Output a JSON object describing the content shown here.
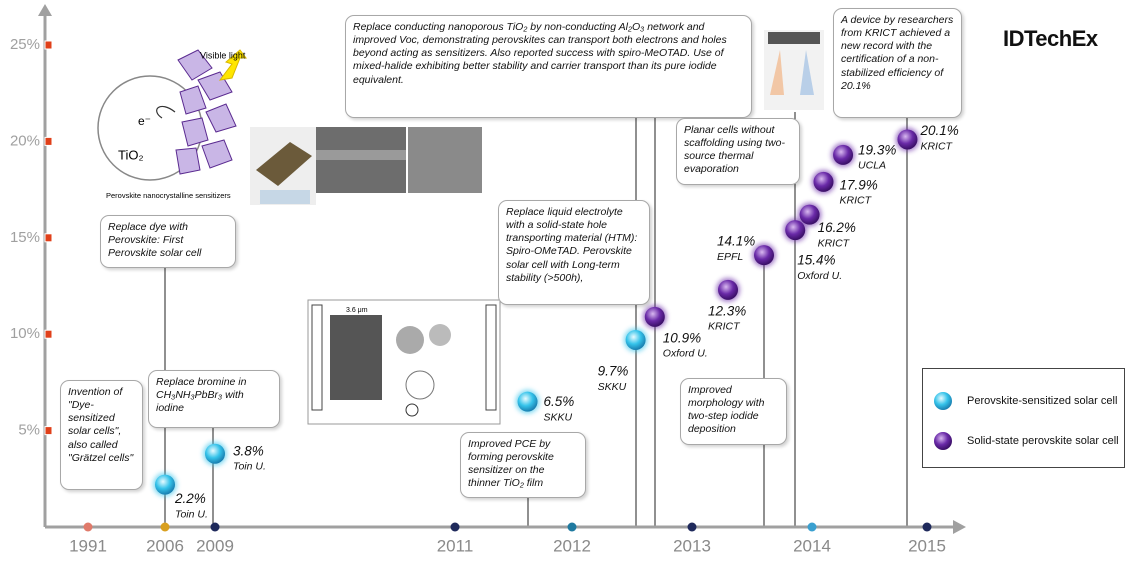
{
  "logo": "IDTechEx",
  "illustration": {
    "light": "Visible light",
    "electron": "e⁻",
    "oxide": "TiO₂",
    "caption": "Perovskite nanocrystalline sensitizers",
    "scale": "3.6 μm"
  },
  "chart_data": {
    "type": "scatter",
    "xticks": [
      1991,
      2006,
      2009,
      2011,
      2012,
      2013,
      2014,
      2015
    ],
    "xtick_colors": [
      "#e07a6a",
      "#d9a020",
      "#1f2a5c",
      "#1f2a5c",
      "#1f7aa0",
      "#1f2a5c",
      "#3aa0d0",
      "#1f2a5c"
    ],
    "ylim": [
      0,
      25
    ],
    "yticks": [
      {
        "value": 5,
        "label": "5%"
      },
      {
        "value": 10,
        "label": "10%"
      },
      {
        "value": 15,
        "label": "15%"
      },
      {
        "value": 20,
        "label": "20%"
      },
      {
        "value": 25,
        "label": "25%"
      }
    ],
    "series": [
      {
        "name": "Perovskite-sensitized solar cell",
        "color": "#35c3ea",
        "x": [
          2006,
          2009,
          2011.62,
          2012.53
        ],
        "values": [
          2.2,
          3.8,
          6.5,
          9.7
        ],
        "value_labels": [
          "2.2%",
          "3.8%",
          "6.5%",
          "9.7%"
        ],
        "institutions": [
          "Toin U.",
          "Toin U.",
          "SKKU",
          "SKKU"
        ]
      },
      {
        "name": "Solid-state perovskite solar cell",
        "color": "#6a2aa8",
        "x": [
          2012.69,
          2013.3,
          2013.6,
          2013.86,
          2013.98,
          2014.1,
          2014.27,
          2014.83
        ],
        "values": [
          10.9,
          12.3,
          14.1,
          15.4,
          16.2,
          17.9,
          19.3,
          20.1
        ],
        "value_labels": [
          "10.9%",
          "12.3%",
          "14.1%",
          "15.4%",
          "16.2%",
          "17.9%",
          "19.3%",
          "20.1%"
        ],
        "institutions": [
          "Oxford U.",
          "KRICT",
          "EPFL",
          "Oxford U.",
          "KRICT",
          "KRICT",
          "UCLA",
          "KRICT"
        ]
      }
    ],
    "annotations": [
      "Invention of \"Dye-sensitized solar cells\", also called \"Grätzel cells\"",
      "Replace dye with Perovskite: First Perovskite solar cell",
      "Replace bromine in CH₃NH₃PbBr₃ with iodine",
      "Improved PCE by forming perovskite sensitizer on the thinner TiO₂ film",
      "Replace liquid electrolyte with a solid-state hole transporting material (HTM): Spiro-OMeTAD. Perovskite solar cell with Long-term stability (>500h),",
      "Replace conducting nanoporous TiO₂ by non-conducting Al₂O₃ network and improved Voc, demonstrating perovskites can transport both electrons and holes beyond acting as sensitizers. Also reported success with spiro-MeOTAD. Use of mixed-halide exhibiting better stability and carrier transport than its pure iodide equivalent.",
      "Planar cells without scaffolding using two-source thermal evaporation",
      "Improved morphology with two-step iodide deposition",
      "A device by researchers from KRICT achieved a new record with the certification of a non-stabilized efficiency of 20.1%"
    ],
    "legend": "right"
  }
}
